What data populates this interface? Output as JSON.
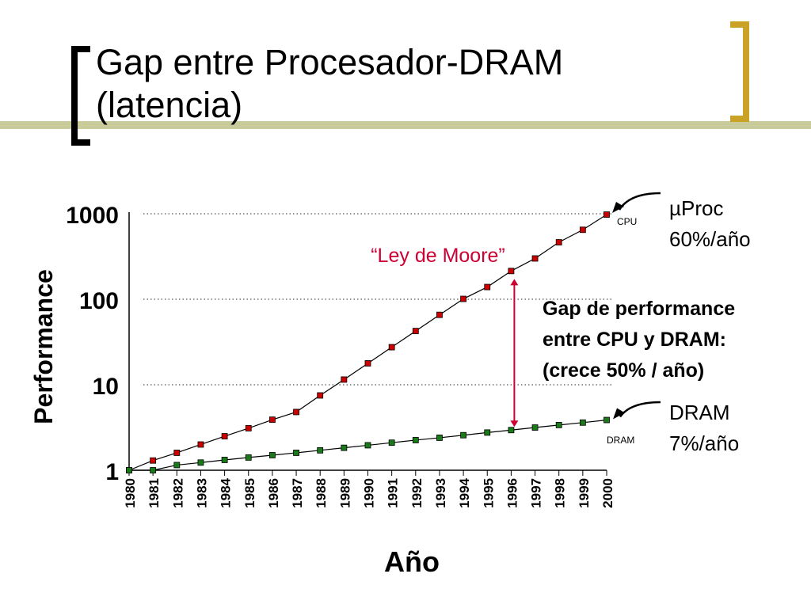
{
  "slide": {
    "title": "Gap entre Procesador-DRAM\n(latencia)",
    "accent_bar_color": "#c9cc9a",
    "bracket_left_color": "#000000",
    "bracket_right_color": "#c9a227"
  },
  "chart_data": {
    "type": "line",
    "title": "",
    "xlabel": "Año",
    "ylabel": "Performance",
    "yscale": "log",
    "ylim": [
      1,
      1000
    ],
    "y_ticks": [
      1,
      10,
      100,
      1000
    ],
    "y_tick_labels": [
      "1",
      "10",
      "100",
      "1000"
    ],
    "grid": "horizontal dotted",
    "categories": [
      "1980",
      "1981",
      "1982",
      "1983",
      "1984",
      "1985",
      "1986",
      "1987",
      "1988",
      "1989",
      "1990",
      "1991",
      "1992",
      "1993",
      "1994",
      "1995",
      "1996",
      "1997",
      "1998",
      "1999",
      "2000"
    ],
    "series": [
      {
        "name": "CPU",
        "color": "#cc0000",
        "values": [
          1,
          1.3,
          1.6,
          2.0,
          2.5,
          3.1,
          3.9,
          4.8,
          7.5,
          11.5,
          17.8,
          27.5,
          42.5,
          65.7,
          101,
          139,
          214,
          300,
          464,
          649,
          978
        ]
      },
      {
        "name": "DRAM",
        "color": "#1a7a1a",
        "values": [
          1,
          1.0,
          1.15,
          1.23,
          1.32,
          1.41,
          1.5,
          1.6,
          1.71,
          1.83,
          1.96,
          2.1,
          2.25,
          2.4,
          2.57,
          2.76,
          2.95,
          3.16,
          3.38,
          3.61,
          3.87
        ]
      }
    ],
    "annotations": {
      "moore": "“Ley de Moore”",
      "moore_color": "#cc0033",
      "gap_line1": "Gap de performance",
      "gap_line2": "entre CPU y DRAM:",
      "gap_line3": "(crece 50% / año)",
      "proc_line1": "µProc",
      "proc_line2": "60%/año",
      "dram_line1": "DRAM",
      "dram_line2": "7%/año",
      "cpu_tag": "CPU",
      "dram_tag": "DRAM",
      "gap_arrow_year": "1996",
      "gap_arrow_color": "#cc0033"
    }
  }
}
